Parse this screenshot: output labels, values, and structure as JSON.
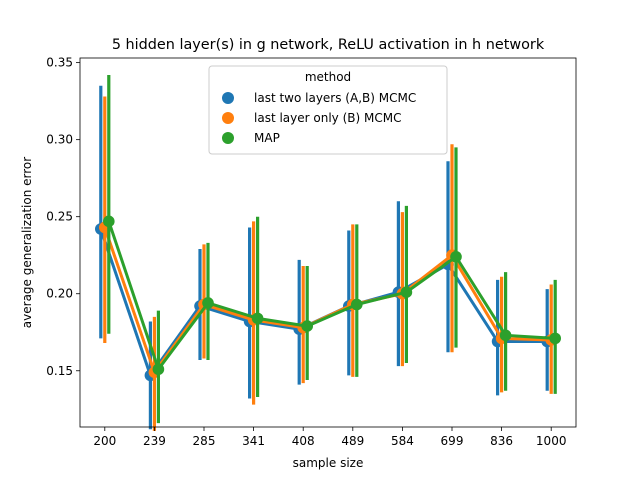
{
  "chart_data": {
    "type": "line",
    "title": "5 hidden layer(s) in g network, ReLU activation in h network",
    "xlabel": "sample size",
    "ylabel": "average generalization error",
    "categories": [
      "200",
      "239",
      "285",
      "341",
      "408",
      "489",
      "584",
      "699",
      "836",
      "1000"
    ],
    "ylim": [
      0.1135,
      0.353
    ],
    "yticks": [
      0.15,
      0.2,
      0.25,
      0.3,
      0.35
    ],
    "ytick_labels": [
      "0.15",
      "0.20",
      "0.25",
      "0.30",
      "0.35"
    ],
    "grid": false,
    "legend": {
      "title": "method",
      "position": "top-center"
    },
    "series": [
      {
        "name": "last two layers (A,B) MCMC",
        "color": "#1f77b4",
        "values": [
          0.242,
          0.147,
          0.192,
          0.182,
          0.177,
          0.192,
          0.201,
          0.219,
          0.169,
          0.169
        ],
        "err_low": [
          0.171,
          0.112,
          0.157,
          0.132,
          0.141,
          0.147,
          0.153,
          0.162,
          0.134,
          0.137
        ],
        "err_high": [
          0.335,
          0.182,
          0.229,
          0.243,
          0.222,
          0.241,
          0.26,
          0.286,
          0.209,
          0.203
        ]
      },
      {
        "name": "last layer only (B) MCMC",
        "color": "#ff7f0e",
        "values": [
          0.243,
          0.149,
          0.193,
          0.183,
          0.178,
          0.193,
          0.2,
          0.225,
          0.171,
          0.17
        ],
        "err_low": [
          0.168,
          0.111,
          0.158,
          0.128,
          0.142,
          0.146,
          0.153,
          0.162,
          0.136,
          0.135
        ],
        "err_high": [
          0.328,
          0.185,
          0.232,
          0.247,
          0.218,
          0.245,
          0.253,
          0.297,
          0.211,
          0.206
        ]
      },
      {
        "name": "MAP",
        "color": "#2ca02c",
        "values": [
          0.247,
          0.151,
          0.194,
          0.184,
          0.179,
          0.193,
          0.201,
          0.224,
          0.173,
          0.171
        ],
        "err_low": [
          0.174,
          0.116,
          0.157,
          0.133,
          0.144,
          0.146,
          0.155,
          0.165,
          0.137,
          0.135
        ],
        "err_high": [
          0.342,
          0.189,
          0.233,
          0.25,
          0.218,
          0.245,
          0.257,
          0.295,
          0.214,
          0.209
        ]
      }
    ]
  }
}
